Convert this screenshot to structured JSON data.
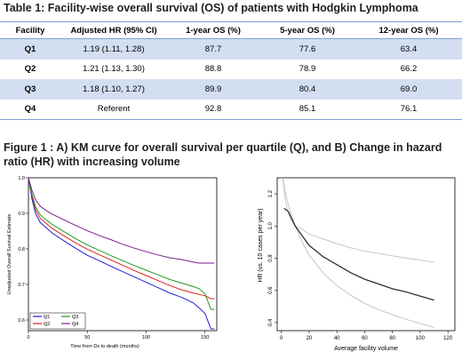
{
  "table": {
    "title": "Table 1: Facility-wise overall survival (OS) of patients with Hodgkin Lymphoma",
    "headers": [
      "Facility",
      "Adjusted HR (95% CI)",
      "1-year OS (%)",
      "5-year OS (%)",
      "12-year OS (%)"
    ],
    "rows": [
      [
        "Q1",
        "1.19 (1.11, 1.28)",
        "87.7",
        "77.6",
        "63.4"
      ],
      [
        "Q2",
        "1.21 (1.13, 1.30)",
        "88.8",
        "78.9",
        "66.2"
      ],
      [
        "Q3",
        "1.18 (1.10, 1.27)",
        "89.9",
        "80.4",
        "69.0"
      ],
      [
        "Q4",
        "Referent",
        "92.8",
        "85.1",
        "76.1"
      ]
    ]
  },
  "figure": {
    "title": "Figure 1 : A) KM curve for overall survival per quartile (Q), and B) Change in hazard ratio (HR) with increasing volume"
  },
  "chart_data": [
    {
      "type": "line",
      "xlabel": "Time from Dx to death (months)",
      "ylabel": "Unadjusted Overall Survival Estimate",
      "xlim": [
        0,
        160
      ],
      "ylim": [
        0.57,
        1.0
      ],
      "x_ticks": [
        "0",
        "50",
        "100",
        "150"
      ],
      "y_ticks": [
        "0.6",
        "0.7",
        "0.8",
        "0.9",
        "1.0"
      ],
      "legend_position": "bottom-left",
      "series": [
        {
          "name": "Q1",
          "color": "#1f1fd6",
          "x": [
            0,
            3,
            6,
            10,
            15,
            20,
            30,
            40,
            50,
            60,
            70,
            80,
            90,
            100,
            110,
            120,
            130,
            140,
            145,
            150,
            155,
            158
          ],
          "y": [
            1.0,
            0.94,
            0.9,
            0.874,
            0.86,
            0.845,
            0.823,
            0.802,
            0.782,
            0.767,
            0.751,
            0.736,
            0.721,
            0.706,
            0.691,
            0.676,
            0.664,
            0.648,
            0.634,
            0.618,
            0.575,
            0.575
          ]
        },
        {
          "name": "Q2",
          "color": "#e11f1f",
          "x": [
            0,
            3,
            6,
            10,
            15,
            20,
            30,
            40,
            50,
            60,
            70,
            80,
            90,
            100,
            110,
            120,
            130,
            140,
            145,
            150,
            155,
            158
          ],
          "y": [
            1.0,
            0.948,
            0.91,
            0.886,
            0.872,
            0.858,
            0.837,
            0.817,
            0.799,
            0.784,
            0.769,
            0.754,
            0.739,
            0.725,
            0.711,
            0.697,
            0.685,
            0.676,
            0.672,
            0.668,
            0.66,
            0.66
          ]
        },
        {
          "name": "Q3",
          "color": "#1f9a1f",
          "x": [
            0,
            3,
            6,
            10,
            15,
            20,
            30,
            40,
            50,
            60,
            70,
            80,
            90,
            100,
            110,
            120,
            130,
            140,
            145,
            150,
            155,
            158
          ],
          "y": [
            1.0,
            0.953,
            0.918,
            0.896,
            0.882,
            0.869,
            0.849,
            0.829,
            0.811,
            0.796,
            0.781,
            0.767,
            0.753,
            0.74,
            0.727,
            0.714,
            0.704,
            0.694,
            0.688,
            0.673,
            0.63,
            0.63
          ]
        },
        {
          "name": "Q4",
          "color": "#7a1f8c",
          "x": [
            0,
            3,
            6,
            10,
            15,
            20,
            30,
            40,
            50,
            60,
            70,
            80,
            90,
            100,
            110,
            120,
            130,
            140,
            145,
            150,
            155,
            158
          ],
          "y": [
            1.0,
            0.965,
            0.938,
            0.92,
            0.908,
            0.898,
            0.882,
            0.866,
            0.851,
            0.838,
            0.826,
            0.813,
            0.802,
            0.792,
            0.783,
            0.775,
            0.77,
            0.763,
            0.76,
            0.76,
            0.76,
            0.76
          ]
        }
      ]
    },
    {
      "type": "line",
      "xlabel": "Average facility volume",
      "ylabel": "HR (vs. 10 cases per year)",
      "xlim": [
        -3,
        125
      ],
      "ylim": [
        0.35,
        1.3
      ],
      "x_ticks": [
        0,
        20,
        40,
        60,
        80,
        100,
        120
      ],
      "y_ticks": [
        "0.4",
        "0.6",
        "0.8",
        "1.0",
        "1.2"
      ],
      "grid": false,
      "series": [
        {
          "role": "estimate",
          "color": "#303030",
          "x": [
            2,
            5,
            10,
            15,
            20,
            30,
            40,
            50,
            60,
            70,
            80,
            90,
            100,
            110
          ],
          "y": [
            1.11,
            1.09,
            1.0,
            0.94,
            0.88,
            0.81,
            0.76,
            0.71,
            0.67,
            0.64,
            0.61,
            0.59,
            0.565,
            0.54
          ]
        },
        {
          "role": "upper",
          "color": "#c0c0c0",
          "x": [
            1,
            3,
            6,
            10,
            15,
            20,
            30,
            40,
            50,
            60,
            70,
            80,
            90,
            100,
            110
          ],
          "y": [
            1.3,
            1.2,
            1.1,
            1.0,
            0.98,
            0.95,
            0.92,
            0.89,
            0.865,
            0.845,
            0.83,
            0.815,
            0.8,
            0.79,
            0.775
          ]
        },
        {
          "role": "lower",
          "color": "#c0c0c0",
          "x": [
            1,
            3,
            6,
            10,
            15,
            20,
            30,
            40,
            50,
            60,
            70,
            80,
            90,
            100,
            110
          ],
          "y": [
            1.3,
            1.15,
            1.05,
            1.0,
            0.9,
            0.82,
            0.71,
            0.63,
            0.57,
            0.52,
            0.48,
            0.45,
            0.42,
            0.395,
            0.37
          ]
        }
      ]
    }
  ]
}
